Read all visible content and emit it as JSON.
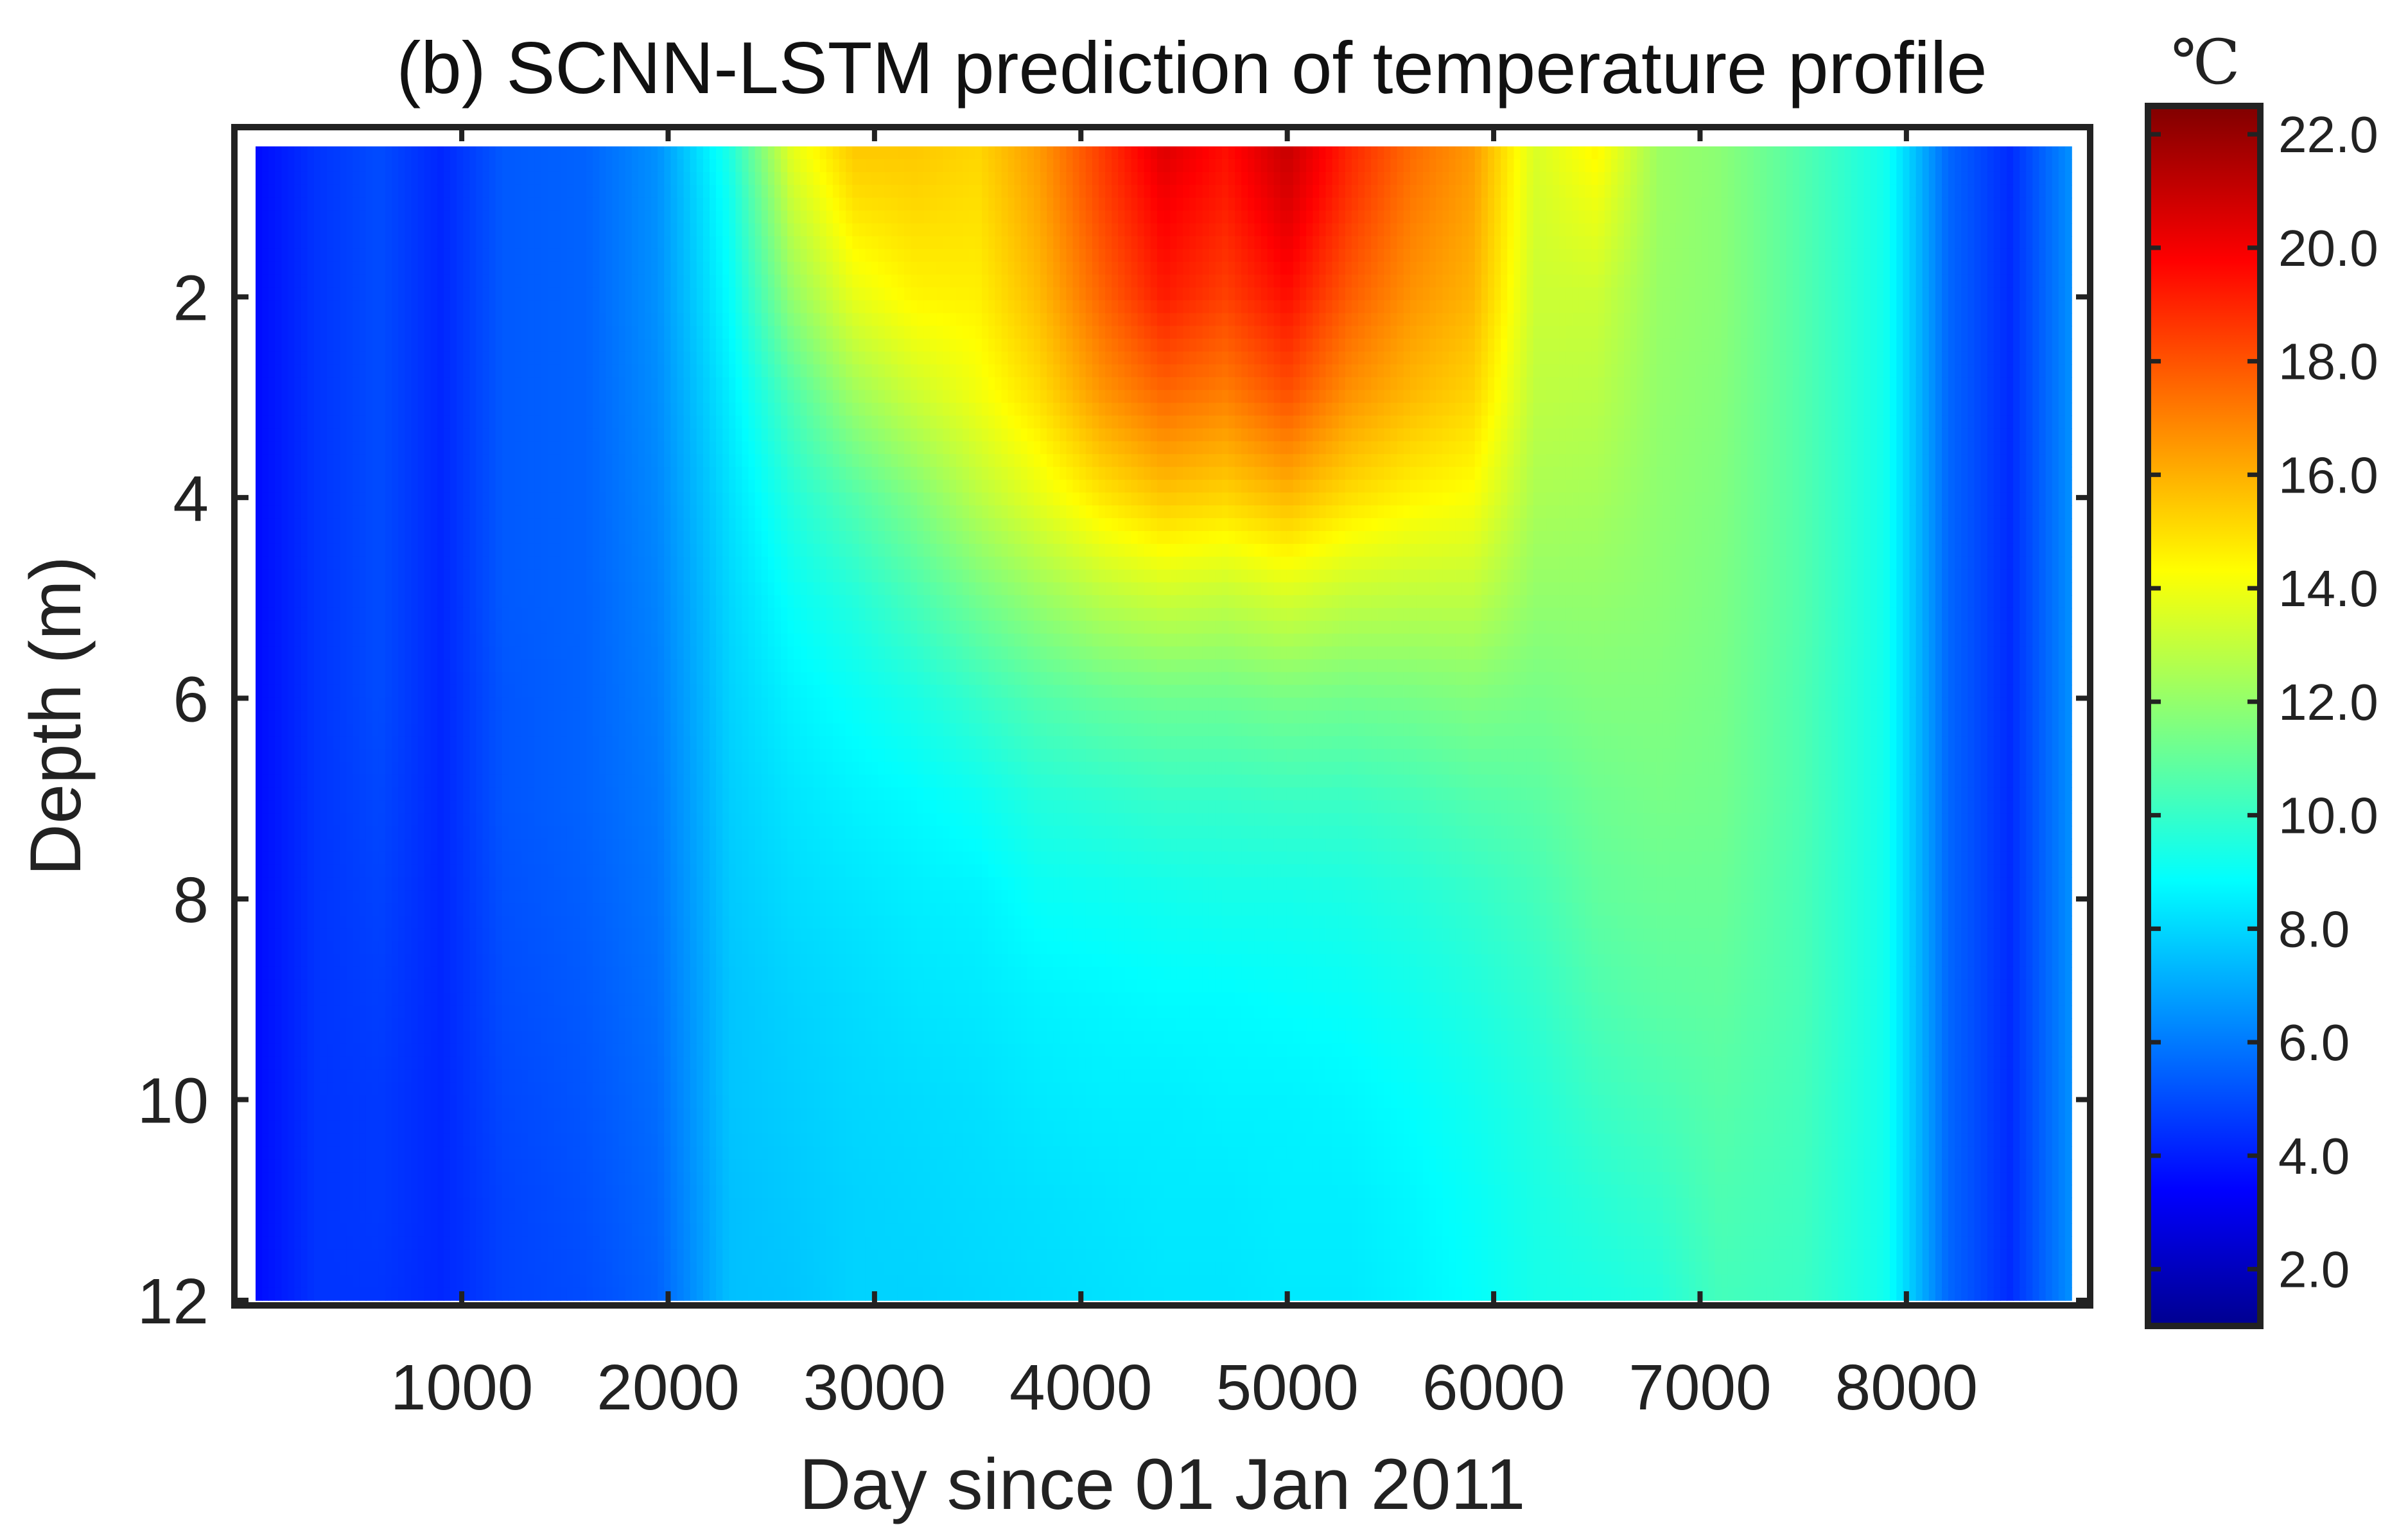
{
  "chart_data": {
    "type": "heatmap",
    "title": "(b) SCNN-LSTM prediction of temperature profile",
    "xlabel": "Day since 01 Jan 2011",
    "ylabel": "Depth (m)",
    "xlim": [
      1,
      8800
    ],
    "ylim": [
      12,
      0.5
    ],
    "y_reversed": true,
    "x_ticks": [
      1000,
      2000,
      3000,
      4000,
      5000,
      6000,
      7000,
      8000
    ],
    "y_ticks": [
      2,
      4,
      6,
      8,
      10,
      12
    ],
    "colormap": "jet",
    "colorbar": {
      "unit": "℃",
      "clim": [
        1.0,
        22.5
      ],
      "ticks": [
        2.0,
        4.0,
        6.0,
        8.0,
        10.0,
        12.0,
        14.0,
        16.0,
        18.0,
        20.0,
        22.0
      ],
      "tick_labels": [
        "2.0",
        "4.0",
        "6.0",
        "8.0",
        "10.0",
        "12.0",
        "14.0",
        "16.0",
        "18.0",
        "20.0",
        "22.0"
      ]
    },
    "depths": [
      0.5,
      1,
      2,
      3,
      4,
      5,
      6,
      7,
      8,
      9,
      10,
      11,
      12
    ],
    "days": [
      1,
      300,
      600,
      900,
      1200,
      1600,
      1950,
      2300,
      2600,
      2900,
      3200,
      3500,
      3800,
      4100,
      4400,
      4700,
      5000,
      5300,
      5600,
      5900,
      6200,
      6500,
      6800,
      7100,
      7500,
      7900,
      8200,
      8500,
      8800
    ],
    "values": [
      [
        3.6,
        3.6,
        3.6,
        3.6,
        3.6,
        3.6,
        3.6,
        3.6,
        3.6,
        3.6,
        3.6,
        3.6,
        3.6
      ],
      [
        4.5,
        4.5,
        4.5,
        4.5,
        4.5,
        4.5,
        4.5,
        4.5,
        4.5,
        4.5,
        4.5,
        4.5,
        4.5
      ],
      [
        5.0,
        5.0,
        5.0,
        5.0,
        5.0,
        5.0,
        5.0,
        4.9,
        4.8,
        4.7,
        4.6,
        4.6,
        4.5
      ],
      [
        4.2,
        4.2,
        4.2,
        4.2,
        4.2,
        4.2,
        4.2,
        4.2,
        4.2,
        4.2,
        4.2,
        4.2,
        4.2
      ],
      [
        5.3,
        5.3,
        5.3,
        5.3,
        5.3,
        5.3,
        5.2,
        5.2,
        5.1,
        5.0,
        4.9,
        4.8,
        4.8
      ],
      [
        5.5,
        5.5,
        5.5,
        5.5,
        5.5,
        5.5,
        5.5,
        5.5,
        5.4,
        5.3,
        5.2,
        5.1,
        5.0
      ],
      [
        6.5,
        6.5,
        6.5,
        6.4,
        6.3,
        6.2,
        6.1,
        6.0,
        5.9,
        5.8,
        5.7,
        5.6,
        5.5
      ],
      [
        9.5,
        9.2,
        8.9,
        8.5,
        8.2,
        8.0,
        7.9,
        7.8,
        7.7,
        7.6,
        7.6,
        7.5,
        7.5
      ],
      [
        13.8,
        13.2,
        12.0,
        10.5,
        9.6,
        9.0,
        8.6,
        8.3,
        8.1,
        7.9,
        7.8,
        7.7,
        7.6
      ],
      [
        15.5,
        15.0,
        13.8,
        12.2,
        10.6,
        9.6,
        9.0,
        8.6,
        8.3,
        8.1,
        8.0,
        7.9,
        7.9
      ],
      [
        15.5,
        15.2,
        14.5,
        13.2,
        11.6,
        10.4,
        9.4,
        8.8,
        8.5,
        8.3,
        8.1,
        8.0,
        7.9
      ],
      [
        15.2,
        15.0,
        14.6,
        14.0,
        12.8,
        11.3,
        10.0,
        9.1,
        8.6,
        8.4,
        8.2,
        8.1,
        8.0
      ],
      [
        16.5,
        16.3,
        15.8,
        15.0,
        13.8,
        12.1,
        10.6,
        9.6,
        9.0,
        8.6,
        8.4,
        8.2,
        8.1
      ],
      [
        18.5,
        18.3,
        17.6,
        16.5,
        14.8,
        12.8,
        11.0,
        9.8,
        9.1,
        8.7,
        8.5,
        8.3,
        8.2
      ],
      [
        20.5,
        20.0,
        19.2,
        17.5,
        15.5,
        13.2,
        11.2,
        10.0,
        9.2,
        8.8,
        8.5,
        8.4,
        8.3
      ],
      [
        19.5,
        19.2,
        18.4,
        17.0,
        15.2,
        13.0,
        11.2,
        10.0,
        9.3,
        8.8,
        8.6,
        8.4,
        8.3
      ],
      [
        21.0,
        20.6,
        19.5,
        18.0,
        15.8,
        13.4,
        11.4,
        10.1,
        9.3,
        8.9,
        8.6,
        8.5,
        8.4
      ],
      [
        19.0,
        18.7,
        17.8,
        16.6,
        15.0,
        13.0,
        11.3,
        10.1,
        9.4,
        9.0,
        8.7,
        8.5,
        8.4
      ],
      [
        17.5,
        17.2,
        16.6,
        15.8,
        14.5,
        12.9,
        11.4,
        10.3,
        9.6,
        9.2,
        8.9,
        8.7,
        8.6
      ],
      [
        16.5,
        16.3,
        15.9,
        15.2,
        14.2,
        12.9,
        11.6,
        10.6,
        9.9,
        9.5,
        9.2,
        9.0,
        8.9
      ],
      [
        13.5,
        13.4,
        13.2,
        12.9,
        12.5,
        12.0,
        11.4,
        10.8,
        10.3,
        9.9,
        9.6,
        9.4,
        9.3
      ],
      [
        14.5,
        14.0,
        13.2,
        12.8,
        12.4,
        12.0,
        11.6,
        11.2,
        10.9,
        10.5,
        10.1,
        9.7,
        9.4
      ],
      [
        12.2,
        12.2,
        12.1,
        12.0,
        11.9,
        11.8,
        11.6,
        11.4,
        11.1,
        10.8,
        10.4,
        10.0,
        9.6
      ],
      [
        11.8,
        11.8,
        11.8,
        11.7,
        11.6,
        11.5,
        11.4,
        11.3,
        11.1,
        10.9,
        10.7,
        10.5,
        10.3
      ],
      [
        10.6,
        10.6,
        10.6,
        10.6,
        10.6,
        10.6,
        10.5,
        10.5,
        10.4,
        10.4,
        10.3,
        10.2,
        10.1
      ],
      [
        9.2,
        9.2,
        9.2,
        9.2,
        9.2,
        9.2,
        9.2,
        9.2,
        9.2,
        9.2,
        9.2,
        9.2,
        9.2
      ],
      [
        5.6,
        5.6,
        5.6,
        5.6,
        5.6,
        5.6,
        5.6,
        5.6,
        5.6,
        5.6,
        5.6,
        5.6,
        5.6
      ],
      [
        4.3,
        4.3,
        4.3,
        4.3,
        4.3,
        4.3,
        4.3,
        4.3,
        4.3,
        4.3,
        4.3,
        4.3,
        4.3
      ],
      [
        6.5,
        6.5,
        6.5,
        6.5,
        6.5,
        6.5,
        6.5,
        6.5,
        6.5,
        6.5,
        6.5,
        6.5,
        6.5
      ]
    ]
  }
}
